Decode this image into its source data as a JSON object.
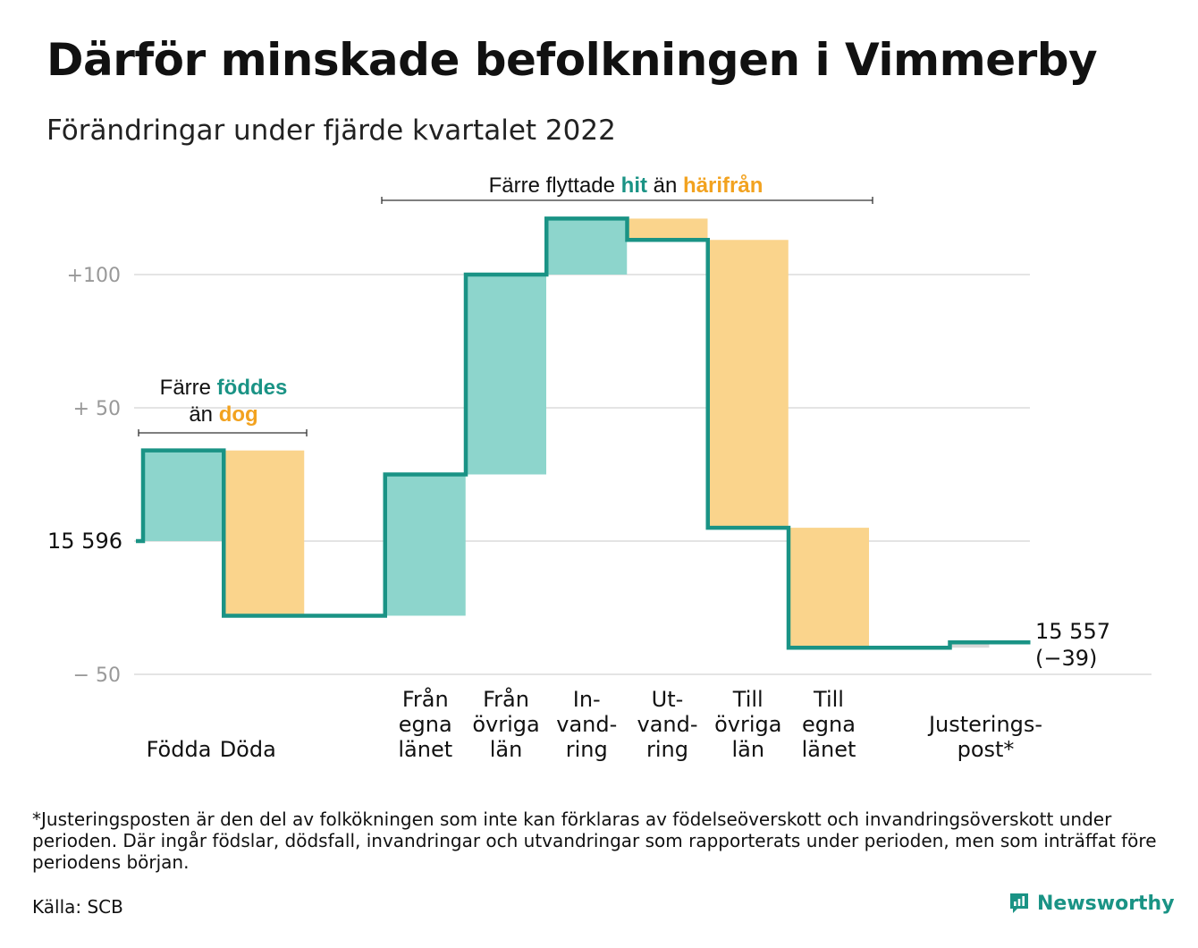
{
  "title": "Därför minskade befolkningen i Vimmerby",
  "subtitle": "Förändringar under fjärde kvartalet 2022",
  "chart_data": {
    "type": "waterfall",
    "start_label": "15 596",
    "end_label_1": "15 557",
    "end_label_2": "(−39)",
    "y_ticks": [
      {
        "value": 100,
        "label": "+100"
      },
      {
        "value": 50,
        "label": "+ 50"
      },
      {
        "value": 0,
        "label": ""
      },
      {
        "value": -50,
        "label": "− 50"
      }
    ],
    "ylim": [
      -50,
      121
    ],
    "colors": {
      "in": "#8dd5cc",
      "out": "#fad48c",
      "line": "#1a9385",
      "adjust": "#d8d8d8",
      "grid": "#e4e4e4"
    },
    "steps": [
      {
        "label": [
          "Födda"
        ],
        "value": 34,
        "kind": "in"
      },
      {
        "label": [
          "Döda"
        ],
        "value": -62,
        "kind": "out"
      },
      {
        "label": [
          "Från",
          "egna",
          "länet"
        ],
        "value": 53,
        "kind": "in"
      },
      {
        "label": [
          "Från",
          "övriga",
          "län"
        ],
        "value": 75,
        "kind": "in"
      },
      {
        "label": [
          "In-",
          "vand-",
          "ring"
        ],
        "value": 21,
        "kind": "in"
      },
      {
        "label": [
          "Ut-",
          "vand-",
          "ring"
        ],
        "value": -8,
        "kind": "out"
      },
      {
        "label": [
          "Till",
          "övriga",
          "län"
        ],
        "value": -108,
        "kind": "out"
      },
      {
        "label": [
          "Till",
          "egna",
          "länet"
        ],
        "value": -45,
        "kind": "out"
      },
      {
        "label": [
          "Justerings-",
          "post*"
        ],
        "value": 2,
        "kind": "adjust"
      }
    ],
    "annotation_births": {
      "line1": "Färre ",
      "hit": "föddes",
      "line2": "än ",
      "ut": "dog"
    },
    "annotation_migration": {
      "pre": "Färre flyttade ",
      "hit": "hit",
      "mid": " än ",
      "ut": "härifrån"
    }
  },
  "footnote": "*Justeringsposten är den del av folkökningen som inte kan förklaras av födelseöverskott och invandringsöverskott under perioden. Där ingår födslar, dödsfall, invandringar och utvandringar som rapporterats under perioden, men som inträffat före periodens början.",
  "source": "Källa: SCB",
  "brand": "Newsworthy"
}
